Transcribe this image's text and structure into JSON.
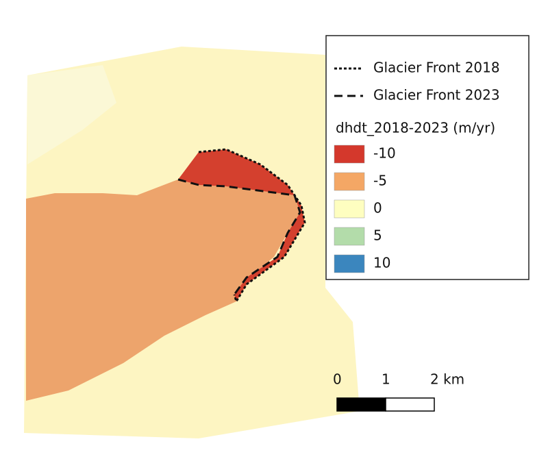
{
  "legend": {
    "lines": [
      {
        "label": "Glacier Front 2018",
        "dash": "4 3"
      },
      {
        "label": "Glacier Front 2023",
        "dash": "12 7"
      }
    ],
    "color_title": "dhdt_2018-2023 (m/yr)",
    "classes": [
      {
        "value": -10,
        "color": "#d4382c"
      },
      {
        "value": -5,
        "color": "#f4a765"
      },
      {
        "value": 0,
        "color": "#fefec0"
      },
      {
        "value": 5,
        "color": "#b3dcaa"
      },
      {
        "value": 10,
        "color": "#3b86be"
      }
    ]
  },
  "scale_bar": {
    "ticks": [
      0,
      1,
      {
        "value": 2,
        "label": "2 km"
      }
    ]
  }
}
